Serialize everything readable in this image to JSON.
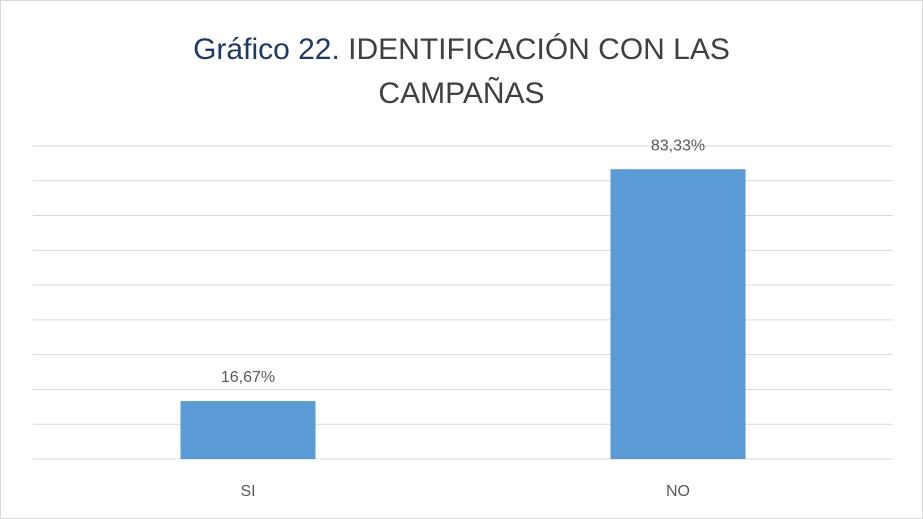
{
  "chart_data": {
    "type": "bar",
    "title": [
      "Gráfico 22.",
      "IDENTIFICACIÓN CON LAS CAMPAÑAS"
    ],
    "categories": [
      "SI",
      "NO"
    ],
    "values": [
      16.67,
      83.33
    ],
    "value_labels": [
      "16,67%",
      "83,33%"
    ],
    "color": "#5b9bd5",
    "ylim": [
      0,
      90
    ],
    "yticks": [
      0,
      10,
      20,
      30,
      40,
      50,
      60,
      70,
      80,
      90
    ],
    "grid": true,
    "ytick_labels": false
  }
}
